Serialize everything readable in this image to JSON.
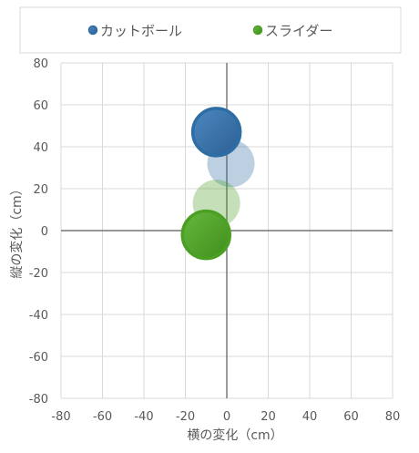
{
  "chart_data": {
    "type": "bubble",
    "title": "",
    "xlabel": "横の変化（cm）",
    "ylabel": "縦の変化（cm）",
    "xlim": [
      -80,
      80
    ],
    "ylim": [
      -80,
      80
    ],
    "xticks": [
      -80,
      -60,
      -40,
      -20,
      0,
      20,
      40,
      60,
      80
    ],
    "yticks": [
      80,
      60,
      40,
      20,
      0,
      -20,
      -40,
      -60,
      -80
    ],
    "xtick_labels": [
      "-80",
      "-60",
      "-40",
      "-20",
      "0",
      "20",
      "40",
      "60",
      "80"
    ],
    "ytick_labels": [
      "80",
      "60",
      "40",
      "20",
      "0",
      "-20",
      "-40",
      "-60",
      "-80"
    ],
    "grid": true,
    "legend_position": "top",
    "series": [
      {
        "name": "カットボール",
        "color": "#2e6da4",
        "points": [
          {
            "x": -5,
            "y": 47,
            "size": 1,
            "emphasis": true
          },
          {
            "x": 2,
            "y": 32,
            "size": 1,
            "emphasis": false
          }
        ]
      },
      {
        "name": "スライダー",
        "color": "#4ba024",
        "points": [
          {
            "x": -5,
            "y": 13,
            "size": 1,
            "emphasis": false
          },
          {
            "x": -10,
            "y": -2,
            "size": 1,
            "emphasis": true
          }
        ]
      }
    ]
  }
}
